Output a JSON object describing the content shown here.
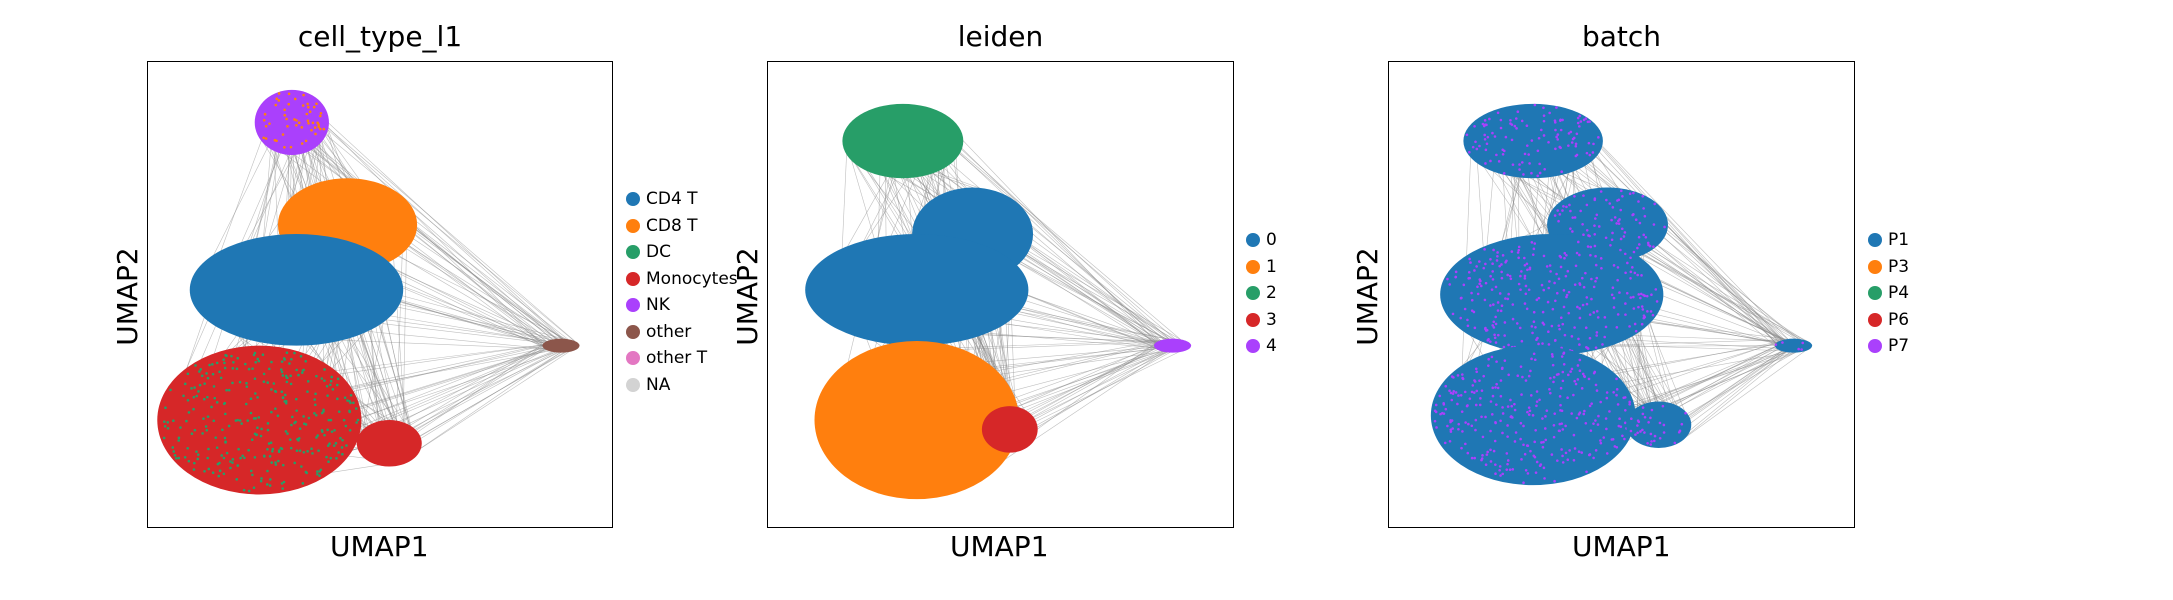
{
  "chart_data": [
    {
      "type": "scatter",
      "title": "cell_type_l1",
      "xlabel": "UMAP1",
      "ylabel": "UMAP2",
      "legend_position": "right",
      "legend": [
        {
          "label": "CD4 T",
          "color": "#1f77b4"
        },
        {
          "label": "CD8 T",
          "color": "#ff7f0e"
        },
        {
          "label": "DC",
          "color": "#279e68"
        },
        {
          "label": "Monocytes",
          "color": "#d62728"
        },
        {
          "label": "NK",
          "color": "#aa40fc"
        },
        {
          "label": "other",
          "color": "#8c564b"
        },
        {
          "label": "other T",
          "color": "#e377c2"
        },
        {
          "label": "NA",
          "color": "#d3d3d3"
        }
      ],
      "clusters": [
        {
          "category": "NK",
          "x": 0.31,
          "y": 0.87,
          "rx": 0.08,
          "ry": 0.07,
          "mix": "CD8 T"
        },
        {
          "category": "CD8 T",
          "x": 0.43,
          "y": 0.65,
          "rx": 0.15,
          "ry": 0.1
        },
        {
          "category": "CD4 T",
          "x": 0.32,
          "y": 0.51,
          "rx": 0.23,
          "ry": 0.12
        },
        {
          "category": "Monocytes",
          "x": 0.24,
          "y": 0.23,
          "rx": 0.22,
          "ry": 0.16,
          "mix": "DC"
        },
        {
          "category": "Monocytes",
          "x": 0.52,
          "y": 0.18,
          "rx": 0.07,
          "ry": 0.05
        },
        {
          "category": "other",
          "x": 0.89,
          "y": 0.39,
          "rx": 0.04,
          "ry": 0.015
        }
      ]
    },
    {
      "type": "scatter",
      "title": "leiden",
      "xlabel": "UMAP1",
      "ylabel": "UMAP2",
      "legend_position": "right",
      "legend": [
        {
          "label": "0",
          "color": "#1f77b4"
        },
        {
          "label": "1",
          "color": "#ff7f0e"
        },
        {
          "label": "2",
          "color": "#279e68"
        },
        {
          "label": "3",
          "color": "#d62728"
        },
        {
          "label": "4",
          "color": "#aa40fc"
        }
      ],
      "clusters": [
        {
          "category": "2",
          "x": 0.29,
          "y": 0.83,
          "rx": 0.13,
          "ry": 0.08
        },
        {
          "category": "0",
          "x": 0.44,
          "y": 0.63,
          "rx": 0.13,
          "ry": 0.1
        },
        {
          "category": "0",
          "x": 0.32,
          "y": 0.51,
          "rx": 0.24,
          "ry": 0.12
        },
        {
          "category": "1",
          "x": 0.32,
          "y": 0.23,
          "rx": 0.22,
          "ry": 0.17
        },
        {
          "category": "3",
          "x": 0.52,
          "y": 0.21,
          "rx": 0.06,
          "ry": 0.05
        },
        {
          "category": "4",
          "x": 0.87,
          "y": 0.39,
          "rx": 0.04,
          "ry": 0.015
        }
      ]
    },
    {
      "type": "scatter",
      "title": "batch",
      "xlabel": "UMAP1",
      "ylabel": "UMAP2",
      "legend_position": "right",
      "legend": [
        {
          "label": "P1",
          "color": "#1f77b4"
        },
        {
          "label": "P3",
          "color": "#ff7f0e"
        },
        {
          "label": "P4",
          "color": "#279e68"
        },
        {
          "label": "P6",
          "color": "#d62728"
        },
        {
          "label": "P7",
          "color": "#aa40fc"
        }
      ],
      "clusters": [
        {
          "category": "P1",
          "x": 0.31,
          "y": 0.83,
          "rx": 0.15,
          "ry": 0.08,
          "mix": "P7"
        },
        {
          "category": "P1",
          "x": 0.47,
          "y": 0.65,
          "rx": 0.13,
          "ry": 0.08,
          "mix": "P7"
        },
        {
          "category": "P1",
          "x": 0.35,
          "y": 0.5,
          "rx": 0.24,
          "ry": 0.13,
          "mix": "P7"
        },
        {
          "category": "P1",
          "x": 0.31,
          "y": 0.24,
          "rx": 0.22,
          "ry": 0.15,
          "mix": "P7"
        },
        {
          "category": "P1",
          "x": 0.58,
          "y": 0.22,
          "rx": 0.07,
          "ry": 0.05,
          "mix": "P7"
        },
        {
          "category": "P1",
          "x": 0.87,
          "y": 0.39,
          "rx": 0.04,
          "ry": 0.015,
          "mix": "P7"
        }
      ]
    }
  ]
}
